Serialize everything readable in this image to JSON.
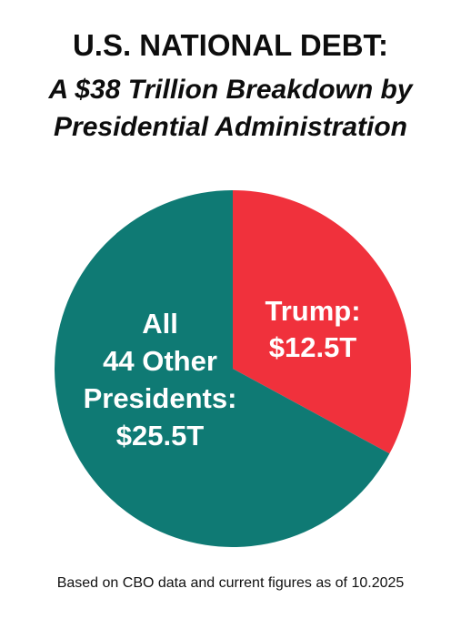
{
  "header": {
    "title": "U.S. NATIONAL DEBT:",
    "subtitle_line1": "A $38 Trillion Breakdown by",
    "subtitle_line2": "Presidential Administration"
  },
  "footer": {
    "note": "Based on CBO data and current figures as of 10.2025"
  },
  "colors": {
    "trump": "#f0313c",
    "others": "#0f7a74"
  },
  "chart_data": {
    "type": "pie",
    "title": "U.S. NATIONAL DEBT:",
    "subtitle": "A $38 Trillion Breakdown by Presidential Administration",
    "unit": "T",
    "slices": [
      {
        "label_lines": [
          "Trump:",
          "$12.5T"
        ],
        "value": 12.5,
        "color": "#f0313c"
      },
      {
        "label_lines": [
          "All",
          "44 Other",
          "Presidents:",
          "$25.5T"
        ],
        "value": 25.5,
        "color": "#0f7a74"
      }
    ],
    "total": 38
  }
}
